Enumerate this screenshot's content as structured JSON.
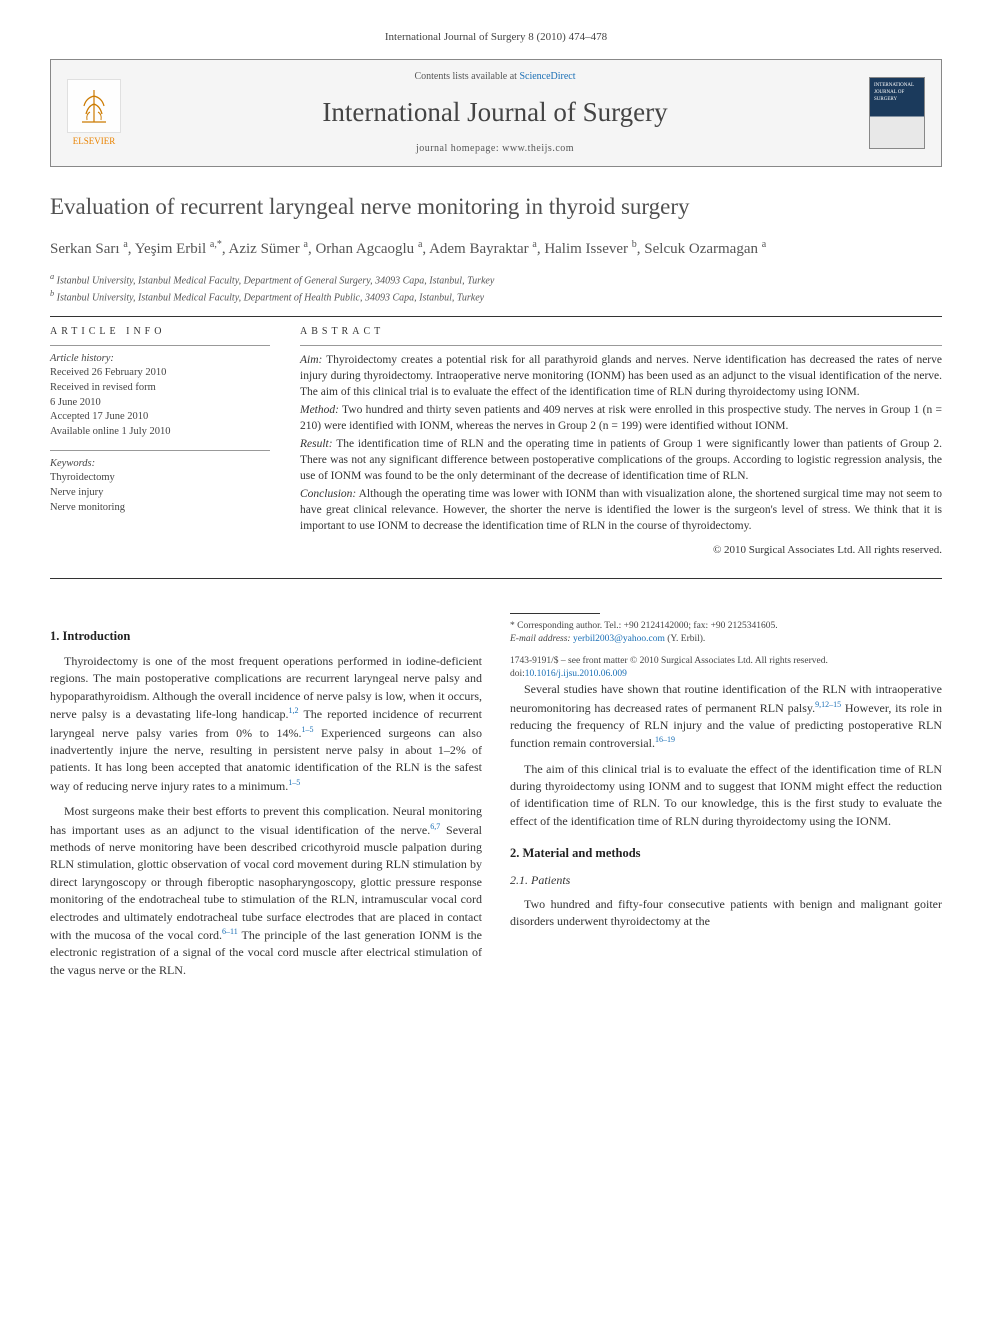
{
  "citation": "International Journal of Surgery 8 (2010) 474–478",
  "journal_box": {
    "elsevier_label": "ELSEVIER",
    "contents_prefix": "Contents lists available at ",
    "contents_link": "ScienceDirect",
    "journal_title": "International Journal of Surgery",
    "homepage_prefix": "journal homepage: ",
    "homepage_url": "www.theijs.com",
    "cover_text": "INTERNATIONAL JOURNAL OF SURGERY"
  },
  "article": {
    "title": "Evaluation of recurrent laryngeal nerve monitoring in thyroid surgery",
    "authors_html": "Serkan Sarı <sup>a</sup>, Yeşim Erbil <sup>a,*</sup>, Aziz Sümer <sup>a</sup>, Orhan Agcaoglu <sup>a</sup>, Adem Bayraktar <sup>a</sup>, Halim Issever <sup>b</sup>, Selcuk Ozarmagan <sup>a</sup>",
    "affiliations": {
      "a": "Istanbul University, Istanbul Medical Faculty, Department of General Surgery, 34093 Capa, Istanbul, Turkey",
      "b": "Istanbul University, Istanbul Medical Faculty, Department of Health Public, 34093 Capa, Istanbul, Turkey"
    }
  },
  "info": {
    "section_label": "ARTICLE INFO",
    "history_label": "Article history:",
    "received": "Received 26 February 2010",
    "revised": "Received in revised form",
    "revised_date": "6 June 2010",
    "accepted": "Accepted 17 June 2010",
    "online": "Available online 1 July 2010",
    "keywords_label": "Keywords:",
    "keywords": [
      "Thyroidectomy",
      "Nerve injury",
      "Nerve monitoring"
    ]
  },
  "abstract": {
    "section_label": "ABSTRACT",
    "aim_label": "Aim:",
    "aim": " Thyroidectomy creates a potential risk for all parathyroid glands and nerves. Nerve identification has decreased the rates of nerve injury during thyroidectomy. Intraoperative nerve monitoring (IONM) has been used as an adjunct to the visual identification of the nerve. The aim of this clinical trial is to evaluate the effect of the identification time of RLN during thyroidectomy using IONM.",
    "method_label": "Method:",
    "method": " Two hundred and thirty seven patients and 409 nerves at risk were enrolled in this prospective study. The nerves in Group 1 (n = 210) were identified with IONM, whereas the nerves in Group 2 (n = 199) were identified without IONM.",
    "result_label": "Result:",
    "result": " The identification time of RLN and the operating time in patients of Group 1 were significantly lower than patients of Group 2. There was not any significant difference between postoperative complications of the groups. According to logistic regression analysis, the use of IONM was found to be the only determinant of the decrease of identification time of RLN.",
    "conclusion_label": "Conclusion:",
    "conclusion": " Although the operating time was lower with IONM than with visualization alone, the shortened surgical time may not seem to have great clinical relevance. However, the shorter the nerve is identified the lower is the surgeon's level of stress. We think that it is important to use IONM to decrease the identification time of RLN in the course of thyroidectomy.",
    "copyright": "© 2010 Surgical Associates Ltd. All rights reserved."
  },
  "body": {
    "intro_heading": "1. Introduction",
    "intro_p1": "Thyroidectomy is one of the most frequent operations performed in iodine-deficient regions. The main postoperative complications are recurrent laryngeal nerve palsy and hypoparathyroidism. Although the overall incidence of nerve palsy is low, when it occurs, nerve palsy is a devastating life-long handicap.",
    "intro_p1_ref": "1,2",
    "intro_p1b": " The reported incidence of recurrent laryngeal nerve palsy varies from 0% to 14%.",
    "intro_p1b_ref": "1–5",
    "intro_p1c": " Experienced surgeons can also inadvertently injure the nerve, resulting in persistent nerve palsy in about 1–2% of patients. It has long been accepted that anatomic identification of the RLN is the safest way of reducing nerve injury rates to a minimum.",
    "intro_p1c_ref": "1–5",
    "intro_p2": "Most surgeons make their best efforts to prevent this complication. Neural monitoring has important uses as an adjunct to the visual identification of the nerve.",
    "intro_p2_ref": "6,7",
    "intro_p2b": " Several methods of nerve monitoring have been described cricothyroid muscle palpation during RLN stimulation, glottic observation of vocal cord movement during RLN stimulation by direct laryngoscopy or through fiberoptic nasopharyngoscopy, glottic pressure response monitoring of the endotracheal tube to stimulation of the RLN, intramuscular vocal cord electrodes and ultimately endotracheal tube surface electrodes that are placed in contact with the mucosa of the vocal cord.",
    "intro_p2b_ref": "6–11",
    "intro_p2c": " The principle of the last generation IONM is the electronic registration of a signal of the vocal cord muscle after electrical stimulation of the vagus nerve or the RLN.",
    "intro_p3": "Several studies have shown that routine identification of the RLN with intraoperative neuromonitoring has decreased rates of permanent RLN palsy.",
    "intro_p3_ref": "9,12–15",
    "intro_p3b": " However, its role in reducing the frequency of RLN injury and the value of predicting postoperative RLN function remain controversial.",
    "intro_p3b_ref": "16–19",
    "intro_p4": "The aim of this clinical trial is to evaluate the effect of the identification time of RLN during thyroidectomy using IONM and to suggest that IONM might effect the reduction of identification time of RLN. To our knowledge, this is the first study to evaluate the effect of the identification time of RLN during thyroidectomy using the IONM.",
    "methods_heading": "2. Material and methods",
    "patients_heading": "2.1. Patients",
    "patients_p1": "Two hundred and fifty-four consecutive patients with benign and malignant goiter disorders underwent thyroidectomy at the"
  },
  "footnotes": {
    "corresponding": "* Corresponding author. Tel.: +90 2124142000; fax: +90 2125341605.",
    "email_label": "E-mail address:",
    "email": "yerbil2003@yahoo.com",
    "email_person": "(Y. Erbil).",
    "issn": "1743-9191/$ – see front matter © 2010 Surgical Associates Ltd. All rights reserved.",
    "doi_label": "doi:",
    "doi": "10.1016/j.ijsu.2010.06.009"
  },
  "colors": {
    "link": "#1a6fb5",
    "elsevier_orange": "#e98300",
    "text": "#333333",
    "rule": "#333333",
    "background": "#ffffff"
  }
}
